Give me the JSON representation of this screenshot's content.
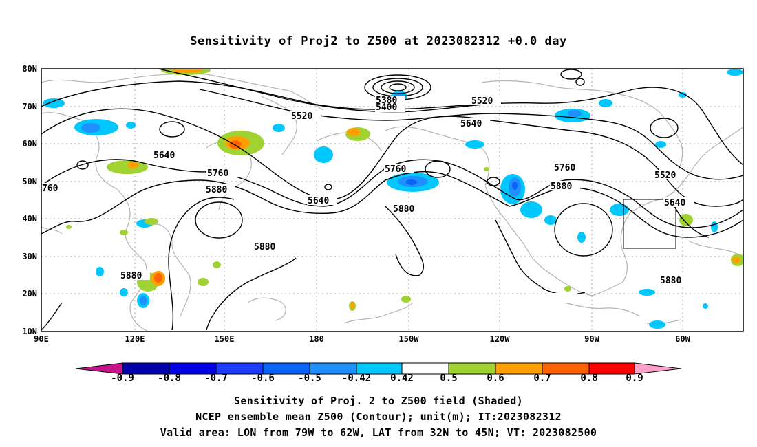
{
  "title": "Sensitivity of Proj2 to Z500 at 2023082312 +0.0 day",
  "map": {
    "lat_labels": [
      "80N",
      "70N",
      "60N",
      "50N",
      "40N",
      "30N",
      "20N",
      "10N"
    ],
    "lon_labels": [
      "90E",
      "120E",
      "150E",
      "180",
      "150W",
      "120W",
      "90W",
      "60W"
    ],
    "contour_labels": [
      "5380",
      "5400",
      "5520",
      "5520",
      "5520",
      "5640",
      "5640",
      "5640",
      "5640",
      "5760",
      "5760",
      "5760",
      "5880",
      "5880",
      "5880",
      "5880",
      "5880",
      "5880",
      "760"
    ],
    "valid_area_box": {
      "lon_west": "79W",
      "lon_east": "62W",
      "lat_south": "32N",
      "lat_north": "45N"
    }
  },
  "colorbar": {
    "labels": [
      "-0.9",
      "-0.8",
      "-0.7",
      "-0.6",
      "-0.5",
      "-0.42",
      "0.42",
      "0.5",
      "0.6",
      "0.7",
      "0.8",
      "0.9"
    ],
    "colors": [
      "#0000aa",
      "#0000e6",
      "#1e3cff",
      "#0a64f5",
      "#1e90ff",
      "#00c8ff",
      "#ffffff",
      "#a0d232",
      "#ffa000",
      "#ff6400",
      "#ff3200",
      "#ff0000"
    ],
    "left_tip_color": "#c8148c",
    "right_tip_color": "#ffa0c8"
  },
  "footer": [
    "Sensitivity of Proj. 2 to Z500 field (Shaded)",
    "NCEP ensemble mean Z500 (Contour); unit(m); IT:2023082312",
    "Valid area: LON from 79W to 62W, LAT from 32N to 45N; VT: 2023082500"
  ]
}
